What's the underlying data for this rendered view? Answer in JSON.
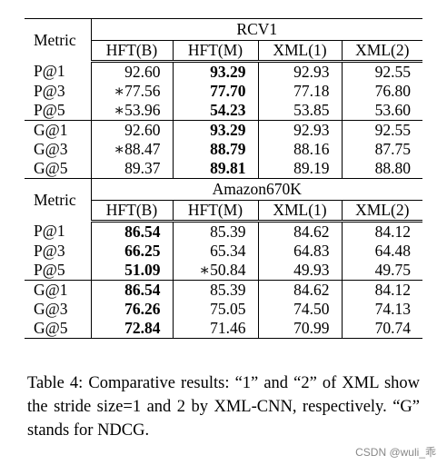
{
  "sections": [
    {
      "dataset": "RCV1",
      "metric_label": "Metric",
      "columns": [
        "HFT(B)",
        "HFT(M)",
        "XML(1)",
        "XML(2)"
      ],
      "groups": [
        [
          {
            "metric": "P@1",
            "values": [
              "92.60",
              "93.29",
              "92.93",
              "92.55"
            ],
            "bold": 1
          },
          {
            "metric": "P@3",
            "values": [
              "∗77.56",
              "77.70",
              "77.18",
              "76.80"
            ],
            "bold": 1
          },
          {
            "metric": "P@5",
            "values": [
              "∗53.96",
              "54.23",
              "53.85",
              "53.60"
            ],
            "bold": 1
          }
        ],
        [
          {
            "metric": "G@1",
            "values": [
              "92.60",
              "93.29",
              "92.93",
              "92.55"
            ],
            "bold": 1
          },
          {
            "metric": "G@3",
            "values": [
              "∗88.47",
              "88.79",
              "88.16",
              "87.75"
            ],
            "bold": 1
          },
          {
            "metric": "G@5",
            "values": [
              "89.37",
              "89.81",
              "89.19",
              "88.80"
            ],
            "bold": 1
          }
        ]
      ]
    },
    {
      "dataset": "Amazon670K",
      "metric_label": "Metric",
      "columns": [
        "HFT(B)",
        "HFT(M)",
        "XML(1)",
        "XML(2)"
      ],
      "groups": [
        [
          {
            "metric": "P@1",
            "values": [
              "86.54",
              "85.39",
              "84.62",
              "84.12"
            ],
            "bold": 0
          },
          {
            "metric": "P@3",
            "values": [
              "66.25",
              "65.34",
              "64.83",
              "64.48"
            ],
            "bold": 0
          },
          {
            "metric": "P@5",
            "values": [
              "51.09",
              "∗50.84",
              "49.93",
              "49.75"
            ],
            "bold": 0
          }
        ],
        [
          {
            "metric": "G@1",
            "values": [
              "86.54",
              "85.39",
              "84.62",
              "84.12"
            ],
            "bold": 0
          },
          {
            "metric": "G@3",
            "values": [
              "76.26",
              "75.05",
              "74.50",
              "74.13"
            ],
            "bold": 0
          },
          {
            "metric": "G@5",
            "values": [
              "72.84",
              "71.46",
              "70.99",
              "70.74"
            ],
            "bold": 0
          }
        ]
      ]
    }
  ],
  "caption": "Table 4: Comparative results: “1” and “2” of XML show the stride size=1 and 2 by XML-CNN, respectively. “G” stands for NDCG.",
  "watermark": "CSDN @wuli_乖"
}
